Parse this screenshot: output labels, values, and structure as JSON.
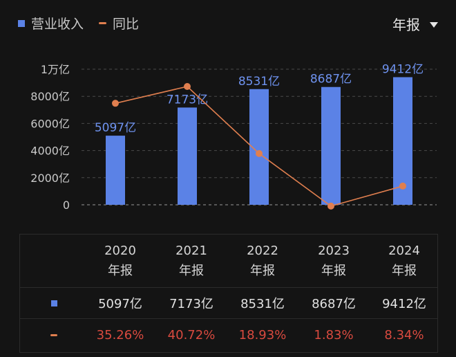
{
  "legend": {
    "bar_label": "营业收入",
    "line_label": "同比"
  },
  "period_selector": {
    "label": "年报"
  },
  "colors": {
    "bar": "#5b82e6",
    "line": "#e07f4f",
    "negative_text": "#d94a3f",
    "background": "#141414"
  },
  "chart_data": {
    "type": "bar",
    "categories": [
      "2020",
      "2021",
      "2022",
      "2023",
      "2024"
    ],
    "y_ticks": [
      0,
      2000,
      4000,
      6000,
      8000,
      10000
    ],
    "y_tick_labels": [
      "0",
      "2000亿",
      "4000亿",
      "6000亿",
      "8000亿",
      "1万亿"
    ],
    "ylim": [
      0,
      10000
    ],
    "series": [
      {
        "name": "营业收入",
        "type": "bar",
        "values": [
          5097,
          7173,
          8531,
          8687,
          9412
        ],
        "labels": [
          "5097亿",
          "7173亿",
          "8531亿",
          "8687亿",
          "9412亿"
        ]
      },
      {
        "name": "同比",
        "type": "line",
        "values": [
          35.26,
          40.72,
          18.93,
          1.83,
          8.34
        ],
        "ylim": [
          0,
          45
        ]
      }
    ],
    "grid": true
  },
  "table": {
    "headers": [
      {
        "year": "2020",
        "kind": "年报"
      },
      {
        "year": "2021",
        "kind": "年报"
      },
      {
        "year": "2022",
        "kind": "年报"
      },
      {
        "year": "2023",
        "kind": "年报"
      },
      {
        "year": "2024",
        "kind": "年报"
      }
    ],
    "revenue": [
      "5097亿",
      "7173亿",
      "8531亿",
      "8687亿",
      "9412亿"
    ],
    "yoy": [
      "35.26%",
      "40.72%",
      "18.93%",
      "1.83%",
      "8.34%"
    ]
  }
}
